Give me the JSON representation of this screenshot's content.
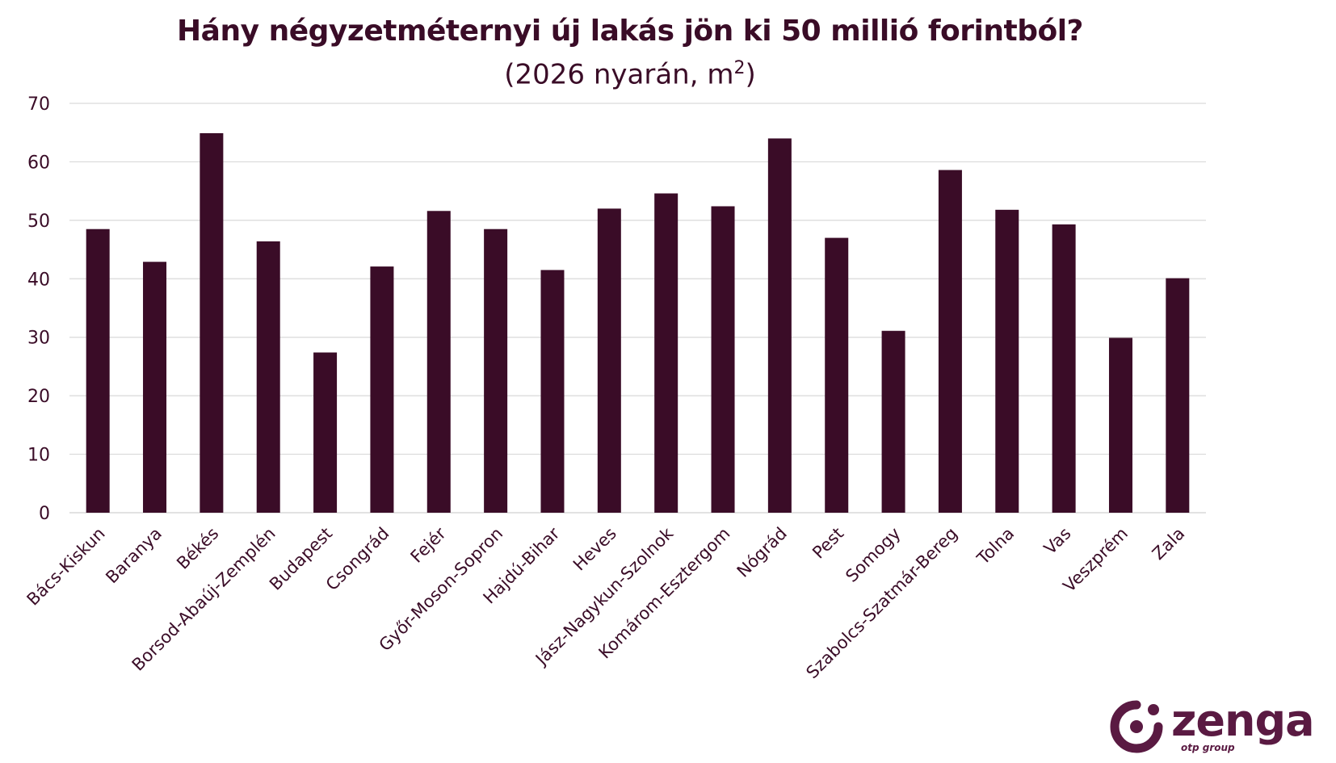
{
  "chart_data": {
    "type": "bar",
    "title": "Hány négyzetméternyi új lakás jön ki 50 millió forintból?",
    "subtitle": "(2026 nyarán, m",
    "subtitle_sup": "2",
    "subtitle_end": ")",
    "categories": [
      "Bács-Kiskun",
      "Baranya",
      "Békés",
      "Borsod-Abaúj-Zemplén",
      "Budapest",
      "Csongrád",
      "Fejér",
      "Győr-Moson-Sopron",
      "Hajdú-Bihar",
      "Heves",
      "Jász-Nagykun-Szolnok",
      "Komárom-Esztergom",
      "Nógrád",
      "Pest",
      "Somogy",
      "Szabolcs-Szatmár-Bereg",
      "Tolna",
      "Vas",
      "Veszprém",
      "Zala"
    ],
    "values": [
      48.5,
      42.9,
      64.9,
      46.4,
      27.4,
      42.1,
      51.6,
      48.5,
      41.5,
      52.0,
      54.6,
      52.4,
      64.0,
      47.0,
      31.1,
      58.6,
      51.8,
      49.3,
      29.9,
      40.1
    ],
    "yticks": [
      "0",
      "10",
      "20",
      "30",
      "40",
      "50",
      "60",
      "70"
    ],
    "ylim": [
      0,
      70
    ],
    "grid": true,
    "legend": "none",
    "colors": {
      "bar": "#3a0c27",
      "grid": "#d9d9d9",
      "text": "#3a0c27"
    }
  },
  "logo": {
    "name": "zenga",
    "tagline": "otp group",
    "icon": "zenga-logo-icon"
  }
}
